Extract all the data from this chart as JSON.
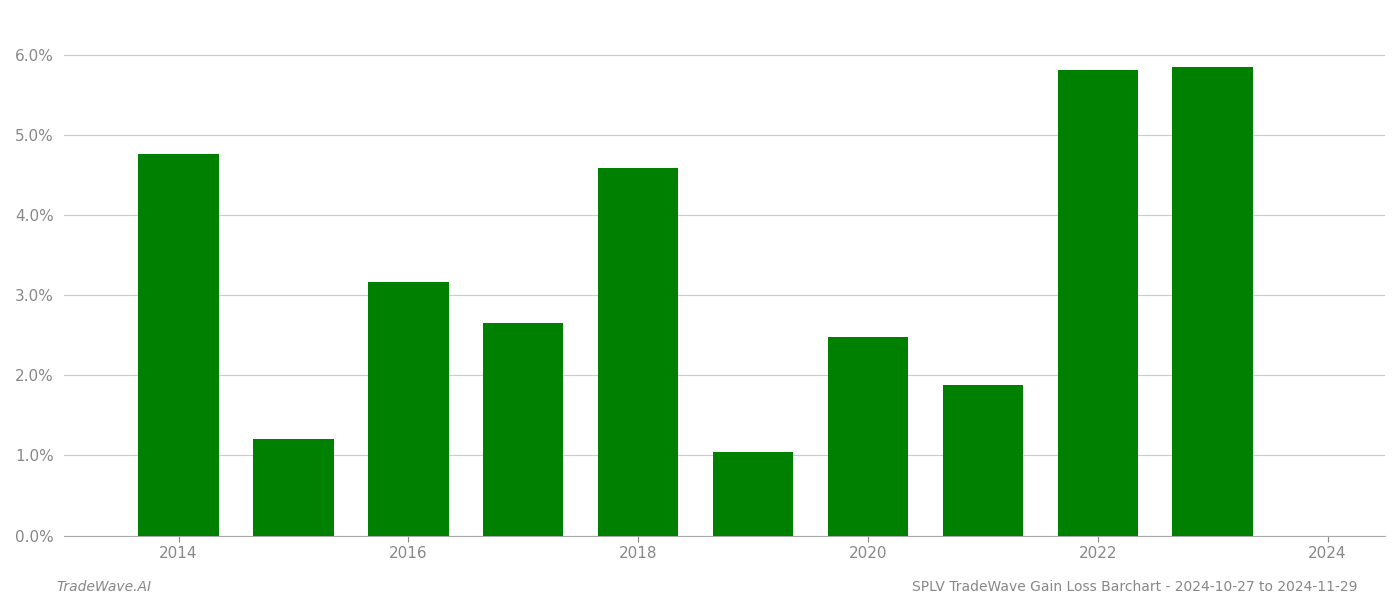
{
  "years": [
    2014,
    2015,
    2016,
    2017,
    2018,
    2019,
    2020,
    2021,
    2022,
    2023
  ],
  "values": [
    0.0477,
    0.0121,
    0.0317,
    0.0265,
    0.0459,
    0.0104,
    0.0248,
    0.0188,
    0.0581,
    0.0585
  ],
  "bar_color": "#008000",
  "background_color": "#ffffff",
  "title": "SPLV TradeWave Gain Loss Barchart - 2024-10-27 to 2024-11-29",
  "watermark": "TradeWave.AI",
  "ylim": [
    0.0,
    0.065
  ],
  "yticks": [
    0.0,
    0.01,
    0.02,
    0.03,
    0.04,
    0.05,
    0.06
  ],
  "ytick_labels": [
    "0.0%",
    "1.0%",
    "2.0%",
    "3.0%",
    "4.0%",
    "5.0%",
    "6.0%"
  ],
  "xlim": [
    2013.0,
    2024.5
  ],
  "xtick_positions": [
    2014,
    2016,
    2018,
    2020,
    2022,
    2024
  ],
  "xtick_labels": [
    "2014",
    "2016",
    "2018",
    "2020",
    "2022",
    "2024"
  ],
  "bar_width": 0.7,
  "grid_color": "#cccccc",
  "axis_color": "#aaaaaa",
  "font_color": "#888888",
  "font_size_ticks": 11,
  "font_size_footer": 10
}
